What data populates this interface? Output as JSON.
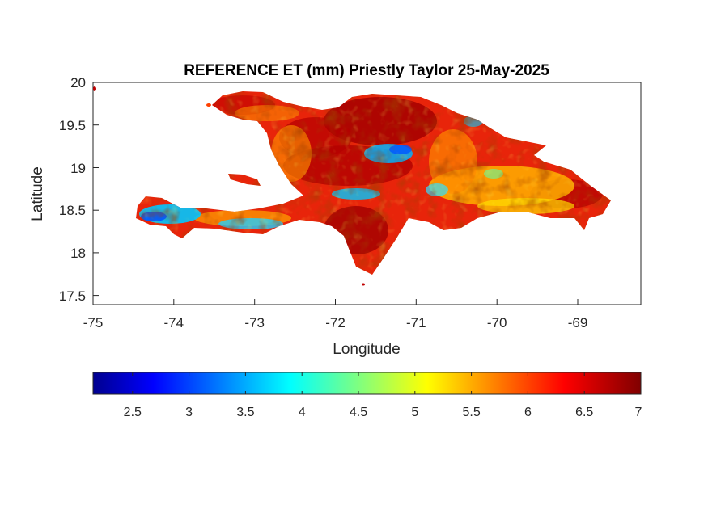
{
  "chart_data": {
    "type": "heatmap",
    "title": "REFERENCE ET (mm) Priestly Taylor 25-May-2025",
    "xlabel": "Longitude",
    "ylabel": "Latitude",
    "xlim": [
      -75,
      -68.22
    ],
    "ylim": [
      17.39,
      20
    ],
    "x_ticks": [
      "-75",
      "-74",
      "-73",
      "-72",
      "-71",
      "-70",
      "-69"
    ],
    "y_ticks": [
      "20",
      "19.5",
      "19",
      "18.5",
      "18",
      "17.5"
    ],
    "colormap": "jet",
    "colorbar": {
      "location": "bottom",
      "range": [
        2.15,
        7
      ],
      "ticks": [
        "2.5",
        "3",
        "3.5",
        "4",
        "4.5",
        "5",
        "5.5",
        "6",
        "6.5",
        "7"
      ],
      "colors": [
        "#00008f",
        "#0000ff",
        "#00ffff",
        "#ffff00",
        "#ff0000",
        "#800000"
      ]
    }
  }
}
